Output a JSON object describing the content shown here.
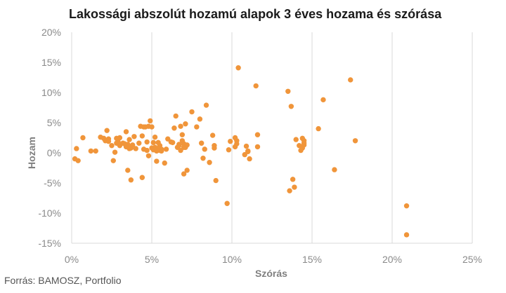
{
  "source": "Forrás: BAMOSZ, Portfolio",
  "chart_data": {
    "type": "scatter",
    "title": "Lakossági abszolút hozamú alapok 3 éves hozama és szórása",
    "xlabel": "Szórás",
    "ylabel": "Hozam",
    "xlim": [
      0,
      25
    ],
    "ylim": [
      -15,
      20
    ],
    "xticks": [
      0,
      5,
      10,
      15,
      20,
      25
    ],
    "yticks": [
      -15,
      -10,
      -5,
      0,
      5,
      10,
      15,
      20
    ],
    "tick_format": "percent",
    "grid": "vertical",
    "legend": "none",
    "point_color": "#f0953a",
    "series": [
      {
        "x": [
          0.2,
          0.3,
          0.4,
          0.7,
          1.2,
          1.5,
          1.8,
          2.0,
          2.1,
          2.2,
          2.3,
          2.3,
          2.5,
          2.6,
          2.7,
          2.8,
          2.8,
          2.9,
          3.0,
          3.0,
          3.2,
          3.3,
          3.4,
          3.4,
          3.5,
          3.5,
          3.6,
          3.6,
          3.7,
          3.7,
          3.8,
          3.9,
          4.0,
          4.2,
          4.3,
          4.4,
          4.4,
          4.5,
          4.5,
          4.6,
          4.7,
          4.7,
          4.8,
          4.8,
          4.9,
          5.0,
          5.0,
          5.1,
          5.1,
          5.2,
          5.2,
          5.3,
          5.3,
          5.4,
          5.4,
          5.5,
          5.5,
          5.6,
          5.6,
          5.8,
          5.9,
          6.0,
          6.2,
          6.3,
          6.4,
          6.5,
          6.6,
          6.7,
          6.7,
          6.8,
          6.8,
          6.9,
          6.9,
          7.0,
          7.0,
          7.0,
          7.1,
          7.1,
          7.2,
          7.2,
          7.5,
          7.8,
          8.0,
          8.1,
          8.2,
          8.3,
          8.4,
          8.6,
          8.8,
          8.9,
          8.9,
          9.0,
          9.7,
          9.8,
          9.9,
          10.2,
          10.2,
          10.3,
          10.3,
          10.4,
          10.8,
          10.9,
          11.0,
          11.0,
          11.1,
          11.5,
          11.6,
          11.6,
          13.5,
          13.6,
          13.7,
          13.8,
          13.9,
          14.0,
          14.2,
          14.3,
          14.4,
          14.4,
          14.5,
          14.5,
          14.5,
          15.4,
          15.7,
          16.4,
          17.4,
          17.7,
          20.9,
          20.9
        ],
        "y": [
          -1.0,
          0.7,
          -1.3,
          2.5,
          0.3,
          0.3,
          2.6,
          2.4,
          2.0,
          3.7,
          1.9,
          2.3,
          1.2,
          -1.3,
          0.1,
          1.6,
          2.4,
          1.8,
          1.2,
          2.5,
          1.6,
          1.5,
          1.0,
          3.5,
          -2.9,
          1.4,
          0.7,
          2.2,
          0.8,
          -4.5,
          1.3,
          2.7,
          0.7,
          1.6,
          4.4,
          -4.1,
          2.8,
          4.3,
          0.6,
          4.3,
          1.8,
          0.4,
          -0.5,
          4.4,
          5.3,
          0.8,
          4.3,
          1.7,
          0.5,
          0.9,
          2.6,
          -1.4,
          0.3,
          1.7,
          0.7,
          0.4,
          1.2,
          0.3,
          0.6,
          -1.7,
          0.6,
          2.3,
          1.8,
          1.7,
          4.1,
          6.1,
          0.9,
          1.2,
          1.4,
          0.4,
          4.4,
          2.0,
          3.0,
          0.9,
          1.5,
          -3.5,
          4.8,
          0.9,
          1.3,
          -2.9,
          6.8,
          4.3,
          5.6,
          1.6,
          -0.9,
          0.6,
          7.9,
          -1.6,
          2.9,
          1.2,
          0.8,
          -4.6,
          -8.4,
          0.5,
          1.9,
          1.0,
          2.5,
          2.0,
          1.5,
          14.1,
          -0.3,
          1.1,
          0.3,
          0.2,
          -1.0,
          11.1,
          3.0,
          1.0,
          10.2,
          -6.3,
          7.7,
          -4.4,
          -5.7,
          2.2,
          1.2,
          0.4,
          2.4,
          0.8,
          1.3,
          1.6,
          2.0,
          4.0,
          8.8,
          -2.8,
          12.1,
          2.0,
          -8.8,
          -13.6
        ]
      }
    ]
  }
}
